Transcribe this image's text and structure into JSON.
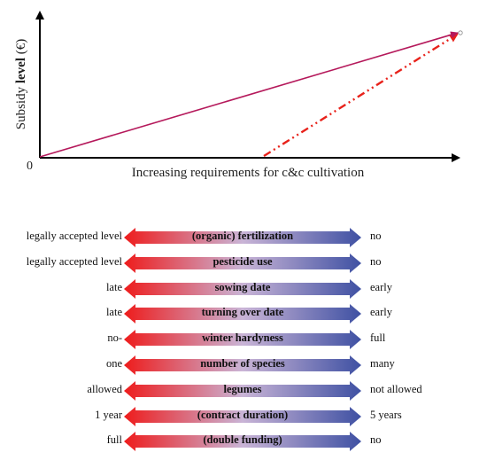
{
  "plot": {
    "y_label_prefix": "Subsidy",
    "y_label_bold": "level",
    "y_label_suffix": "(€)",
    "origin_label": "0",
    "x_label": "Increasing requirements for c&c  cultivation",
    "colors": {
      "axis": "#000000",
      "solid_line": "#b5195b",
      "dashed_line": "#e8221b"
    }
  },
  "gradient_colors": {
    "left": "#ee1c1c",
    "middle": "#c9b4d6",
    "right": "#3f51a3"
  },
  "rows": [
    {
      "left": "legally accepted level",
      "middle": "(organic) fertilization",
      "right": "no"
    },
    {
      "left": "legally accepted level",
      "middle": "pesticide use",
      "right": "no"
    },
    {
      "left": "late",
      "middle": "sowing date",
      "right": "early"
    },
    {
      "left": "late",
      "middle": "turning over date",
      "right": "early"
    },
    {
      "left": "no-",
      "middle": "winter hardyness",
      "right": "full"
    },
    {
      "left": "one",
      "middle": "number of species",
      "right": "many"
    },
    {
      "left": "allowed",
      "middle": "legumes",
      "right": "not allowed"
    },
    {
      "left": "1 year",
      "middle": "(contract duration)",
      "right": "5 years"
    },
    {
      "left": "full",
      "middle": "(double funding)",
      "right": "no"
    }
  ]
}
